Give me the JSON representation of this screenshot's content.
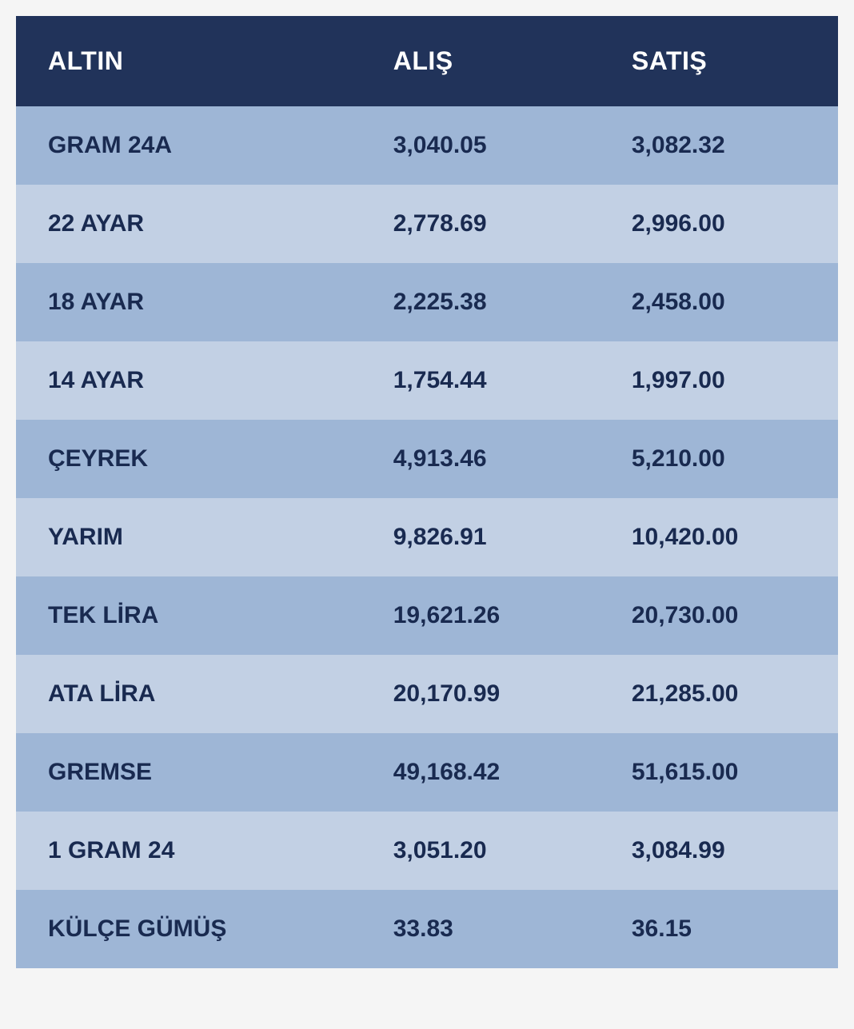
{
  "table": {
    "type": "table",
    "header_bg_color": "#21335a",
    "header_text_color": "#ffffff",
    "row_odd_bg_color": "#9eb6d6",
    "row_even_bg_color": "#c2d0e4",
    "row_text_color": "#192a50",
    "header_fontsize": 32,
    "cell_fontsize": 30,
    "font_weight": 700,
    "columns": [
      {
        "key": "name",
        "label": "ALTIN",
        "width": "42%"
      },
      {
        "key": "buy",
        "label": "ALIŞ",
        "width": "29%"
      },
      {
        "key": "sell",
        "label": "SATIŞ",
        "width": "29%"
      }
    ],
    "rows": [
      {
        "name": "GRAM 24A",
        "buy": "3,040.05",
        "sell": "3,082.32"
      },
      {
        "name": "22 AYAR",
        "buy": "2,778.69",
        "sell": "2,996.00"
      },
      {
        "name": "18 AYAR",
        "buy": "2,225.38",
        "sell": "2,458.00"
      },
      {
        "name": "14 AYAR",
        "buy": "1,754.44",
        "sell": "1,997.00"
      },
      {
        "name": "ÇEYREK",
        "buy": "4,913.46",
        "sell": "5,210.00"
      },
      {
        "name": "YARIM",
        "buy": "9,826.91",
        "sell": "10,420.00"
      },
      {
        "name": "TEK LİRA",
        "buy": "19,621.26",
        "sell": "20,730.00"
      },
      {
        "name": "ATA LİRA",
        "buy": "20,170.99",
        "sell": "21,285.00"
      },
      {
        "name": "GREMSE",
        "buy": "49,168.42",
        "sell": "51,615.00"
      },
      {
        "name": "1 GRAM 24",
        "buy": "3,051.20",
        "sell": "3,084.99"
      },
      {
        "name": "KÜLÇE GÜMÜŞ",
        "buy": "33.83",
        "sell": "36.15"
      }
    ]
  }
}
